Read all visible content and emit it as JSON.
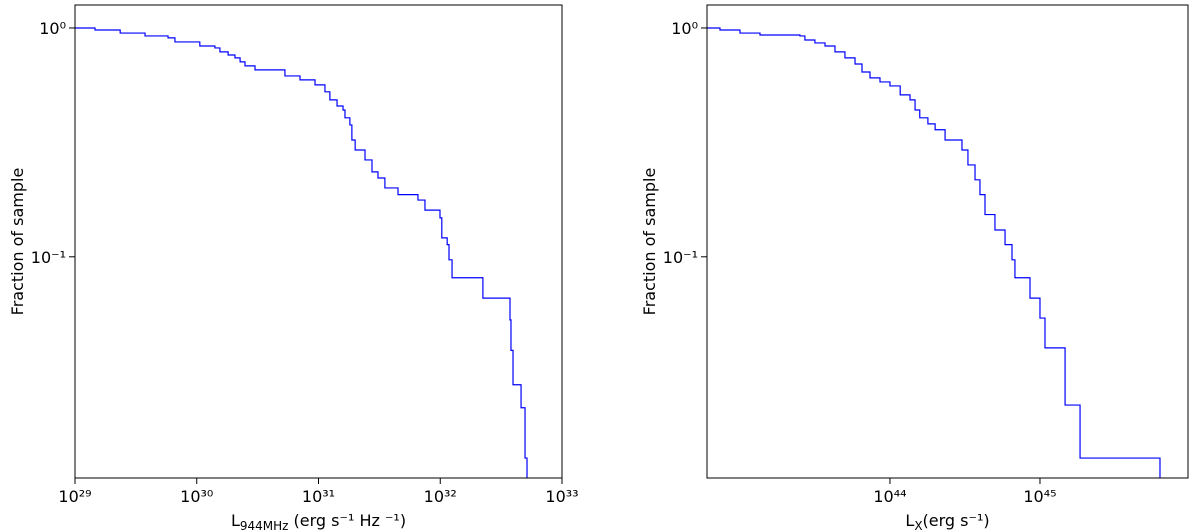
{
  "chart_data": [
    {
      "type": "step",
      "ylabel": "Fraction of sample",
      "xlabel": {
        "main": "L",
        "sub": "944MHz",
        "rest": " (erg s⁻¹ Hz ⁻¹)"
      },
      "xlog": true,
      "ylog": true,
      "xlim": [
        1e+29,
        1e+33
      ],
      "ylim": [
        0.0108,
        1.26
      ],
      "xticks": [
        {
          "value": 1e+29,
          "label": "10²⁹"
        },
        {
          "value": 1e+30,
          "label": "10³⁰"
        },
        {
          "value": 1e+31,
          "label": "10³¹"
        },
        {
          "value": 1e+32,
          "label": "10³²"
        },
        {
          "value": 1e+33,
          "label": "10³³"
        }
      ],
      "yticks": [
        {
          "value": 1,
          "label": "10⁰"
        },
        {
          "value": 0.1,
          "label": "10⁻¹"
        }
      ],
      "series": [
        {
          "color": "#0000ff",
          "x": [
            1e+29,
            1.46e+29,
            2.35e+29,
            3.76e+29,
            5.81e+29,
            6.62e+29,
            1.06e+30,
            1.41e+30,
            1.55e+30,
            1.81e+30,
            2.06e+30,
            2.27e+30,
            2.49e+30,
            3.01e+30,
            5.3e+30,
            7.05e+30,
            9.36e+30,
            1.13e+31,
            1.24e+31,
            1.42e+31,
            1.59e+31,
            1.65e+31,
            1.81e+31,
            1.88e+31,
            2e+31,
            2.41e+31,
            2.75e+31,
            3.08e+31,
            3.51e+31,
            4.5e+31,
            6.56e+31,
            7.49e+31,
            9.95e+31,
            1.03e+32,
            1.14e+32,
            1.18e+32,
            1.25e+32,
            2.24e+32,
            3.74e+32,
            3.81e+32,
            3.96e+32,
            4.61e+32,
            4.97e+32,
            5.16e+32
          ],
          "values": [
            1.0,
            0.98,
            0.95,
            0.923,
            0.905,
            0.869,
            0.834,
            0.818,
            0.786,
            0.762,
            0.74,
            0.711,
            0.683,
            0.656,
            0.617,
            0.593,
            0.564,
            0.526,
            0.485,
            0.456,
            0.438,
            0.405,
            0.377,
            0.324,
            0.293,
            0.265,
            0.235,
            0.221,
            0.2,
            0.187,
            0.177,
            0.16,
            0.148,
            0.121,
            0.113,
            0.097,
            0.081,
            0.066,
            0.053,
            0.039,
            0.0276,
            0.0219,
            0.0132,
            0.0108
          ]
        }
      ]
    },
    {
      "type": "step",
      "ylabel": "Fraction of sample",
      "xlabel": {
        "main": "L",
        "sub": "X",
        "rest": "(erg s⁻¹)"
      },
      "xlog": true,
      "ylog": true,
      "xlim": [
        6.03e+42,
        9.7e+45
      ],
      "ylim": [
        0.0108,
        1.26
      ],
      "xticks": [
        {
          "value": 1e+44,
          "label": "10⁴⁴"
        },
        {
          "value": 1e+45,
          "label": "10⁴⁵"
        }
      ],
      "yticks": [
        {
          "value": 1,
          "label": "10⁰"
        },
        {
          "value": 0.1,
          "label": "10⁻¹"
        }
      ],
      "series": [
        {
          "color": "#0000ff",
          "x": [
            6.03e+42,
            7.36e+42,
            1e+43,
            1.36e+43,
            2.51e+43,
            2.71e+43,
            3.16e+43,
            3.69e+43,
            4.3e+43,
            5.01e+43,
            5.85e+43,
            6.51e+43,
            7.36e+43,
            8.58e+43,
            1e+44,
            1.17e+44,
            1.36e+44,
            1.47e+44,
            1.58e+44,
            1.79e+44,
            2e+44,
            2.33e+44,
            3.02e+44,
            3.31e+44,
            3.69e+44,
            3.98e+44,
            4.3e+44,
            5.01e+44,
            5.85e+44,
            6.51e+44,
            6.81e+44,
            8.58e+44,
            1e+45,
            1.08e+45,
            1.47e+45,
            1.85e+45,
            6.31e+45
          ],
          "values": [
            1.0,
            0.98,
            0.95,
            0.932,
            0.923,
            0.886,
            0.86,
            0.834,
            0.786,
            0.74,
            0.696,
            0.642,
            0.605,
            0.581,
            0.558,
            0.51,
            0.485,
            0.438,
            0.405,
            0.381,
            0.359,
            0.324,
            0.293,
            0.252,
            0.217,
            0.187,
            0.153,
            0.131,
            0.113,
            0.097,
            0.081,
            0.066,
            0.054,
            0.04,
            0.0225,
            0.0132,
            0.0108
          ]
        }
      ]
    }
  ]
}
